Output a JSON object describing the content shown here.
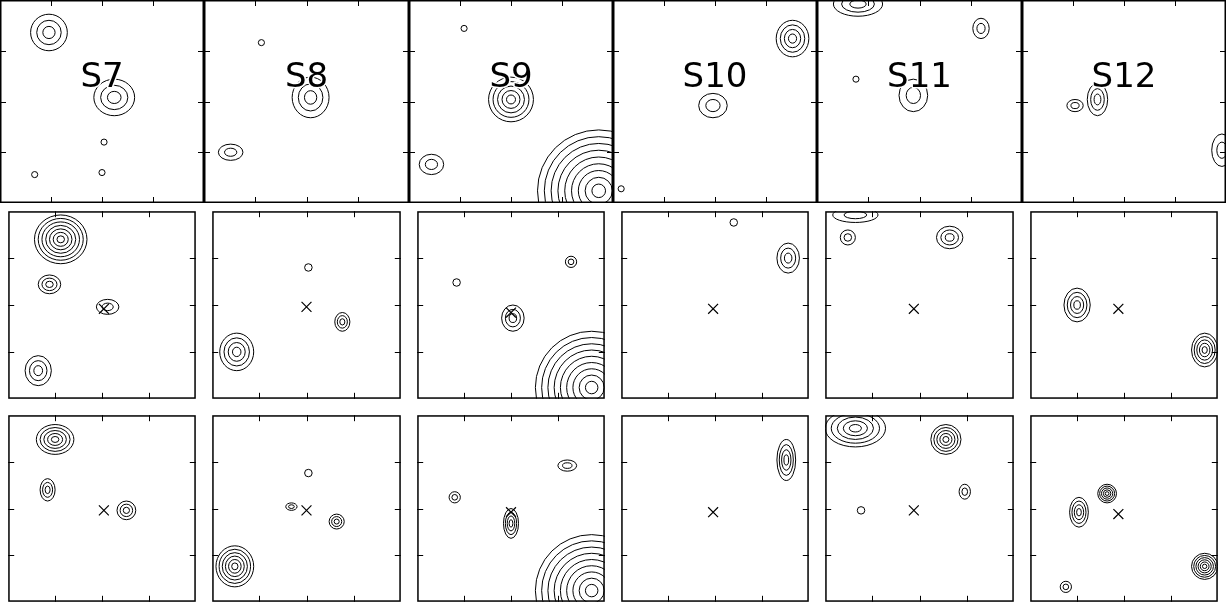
{
  "chart_data": [
    {
      "type": "contour",
      "title": "S7",
      "xlim": [
        0,
        100
      ],
      "ylim": [
        0,
        100
      ],
      "xticks": [
        25,
        50,
        75
      ],
      "yticks": [
        25,
        50,
        75
      ],
      "tick_labels": false,
      "sources": [
        {
          "x": 24,
          "y": 84,
          "rx": 9,
          "ry": 9,
          "levels": 3
        },
        {
          "x": 56,
          "y": 52,
          "rx": 10,
          "ry": 9,
          "levels": 3
        },
        {
          "x": 51,
          "y": 30,
          "rx": 1.5,
          "ry": 1.5,
          "levels": 1
        },
        {
          "x": 17,
          "y": 14,
          "rx": 1.5,
          "ry": 1.5,
          "levels": 1
        },
        {
          "x": 50,
          "y": 15,
          "rx": 1.5,
          "ry": 1.5,
          "levels": 1
        }
      ]
    },
    {
      "type": "contour",
      "title": "S8",
      "xlim": [
        0,
        100
      ],
      "ylim": [
        0,
        100
      ],
      "xticks": [
        25,
        50,
        75
      ],
      "yticks": [
        25,
        50,
        75
      ],
      "tick_labels": false,
      "sources": [
        {
          "x": 52,
          "y": 52,
          "rx": 9,
          "ry": 10,
          "levels": 3
        },
        {
          "x": 13,
          "y": 25,
          "rx": 6,
          "ry": 4,
          "levels": 2
        },
        {
          "x": 28,
          "y": 79,
          "rx": 1.5,
          "ry": 1.5,
          "levels": 1
        }
      ]
    },
    {
      "type": "contour",
      "title": "S9",
      "xlim": [
        0,
        100
      ],
      "ylim": [
        0,
        100
      ],
      "xticks": [
        25,
        50,
        75
      ],
      "yticks": [
        25,
        50,
        75
      ],
      "tick_labels": false,
      "sources": [
        {
          "x": 50,
          "y": 51,
          "rx": 11,
          "ry": 11,
          "levels": 5
        },
        {
          "x": 11,
          "y": 19,
          "rx": 6,
          "ry": 5,
          "levels": 2
        },
        {
          "x": 93,
          "y": 6,
          "rx": 30,
          "ry": 30,
          "levels": 9
        },
        {
          "x": 27,
          "y": 86,
          "rx": 1.5,
          "ry": 1.5,
          "levels": 1
        }
      ]
    },
    {
      "type": "contour",
      "title": "S10",
      "xlim": [
        0,
        100
      ],
      "ylim": [
        0,
        100
      ],
      "xticks": [
        25,
        50,
        75
      ],
      "yticks": [
        25,
        50,
        75
      ],
      "tick_labels": false,
      "sources": [
        {
          "x": 49,
          "y": 48,
          "rx": 7,
          "ry": 6,
          "levels": 2
        },
        {
          "x": 88,
          "y": 81,
          "rx": 8,
          "ry": 9,
          "levels": 4
        },
        {
          "x": 4,
          "y": 7,
          "rx": 1.5,
          "ry": 1.5,
          "levels": 1
        }
      ]
    },
    {
      "type": "contour",
      "title": "S11",
      "xlim": [
        0,
        100
      ],
      "ylim": [
        0,
        100
      ],
      "xticks": [
        25,
        50,
        75
      ],
      "yticks": [
        25,
        50,
        75
      ],
      "tick_labels": false,
      "sources": [
        {
          "x": 47,
          "y": 53,
          "rx": 7,
          "ry": 8,
          "levels": 2
        },
        {
          "x": 20,
          "y": 98,
          "rx": 12,
          "ry": 6,
          "levels": 3
        },
        {
          "x": 80,
          "y": 86,
          "rx": 4,
          "ry": 5,
          "levels": 2
        },
        {
          "x": 19,
          "y": 61,
          "rx": 1.5,
          "ry": 1.5,
          "levels": 1
        }
      ]
    },
    {
      "type": "contour",
      "title": "S12",
      "xlim": [
        0,
        100
      ],
      "ylim": [
        0,
        100
      ],
      "xticks": [
        25,
        50,
        75
      ],
      "yticks": [
        25,
        50,
        75
      ],
      "tick_labels": false,
      "sources": [
        {
          "x": 37,
          "y": 51,
          "rx": 5,
          "ry": 8,
          "levels": 3
        },
        {
          "x": 26,
          "y": 48,
          "rx": 4,
          "ry": 3,
          "levels": 2
        },
        {
          "x": 98,
          "y": 26,
          "rx": 5,
          "ry": 8,
          "levels": 2
        }
      ]
    },
    {
      "type": "contour",
      "xlim": [
        0,
        100
      ],
      "ylim": [
        0,
        100
      ],
      "xticks": [
        25,
        50,
        75
      ],
      "yticks": [
        25,
        50,
        75
      ],
      "tick_labels": false,
      "marker": "x",
      "cross": {
        "x": 51,
        "y": 48
      },
      "sources": [
        {
          "x": 28,
          "y": 85,
          "rx": 14,
          "ry": 13,
          "levels": 7
        },
        {
          "x": 22,
          "y": 61,
          "rx": 6,
          "ry": 5,
          "levels": 3
        },
        {
          "x": 53,
          "y": 49,
          "rx": 6,
          "ry": 4,
          "levels": 2
        },
        {
          "x": 16,
          "y": 15,
          "rx": 7,
          "ry": 8,
          "levels": 3
        }
      ]
    },
    {
      "type": "contour",
      "xlim": [
        0,
        100
      ],
      "ylim": [
        0,
        100
      ],
      "xticks": [
        25,
        50,
        75
      ],
      "yticks": [
        25,
        50,
        75
      ],
      "tick_labels": false,
      "marker": "x",
      "cross": {
        "x": 50,
        "y": 49
      },
      "sources": [
        {
          "x": 69,
          "y": 41,
          "rx": 4,
          "ry": 5,
          "levels": 3
        },
        {
          "x": 13,
          "y": 25,
          "rx": 9,
          "ry": 10,
          "levels": 4
        },
        {
          "x": 51,
          "y": 70,
          "rx": 2,
          "ry": 2,
          "levels": 1
        }
      ]
    },
    {
      "type": "contour",
      "xlim": [
        0,
        100
      ],
      "ylim": [
        0,
        100
      ],
      "xticks": [
        25,
        50,
        75
      ],
      "yticks": [
        25,
        50,
        75
      ],
      "tick_labels": false,
      "marker": "x",
      "cross": {
        "x": 50,
        "y": 46
      },
      "sources": [
        {
          "x": 51,
          "y": 43,
          "rx": 6,
          "ry": 7,
          "levels": 3
        },
        {
          "x": 93,
          "y": 6,
          "rx": 30,
          "ry": 30,
          "levels": 9
        },
        {
          "x": 82,
          "y": 73,
          "rx": 3,
          "ry": 3,
          "levels": 2
        },
        {
          "x": 21,
          "y": 62,
          "rx": 2,
          "ry": 2,
          "levels": 1
        }
      ]
    },
    {
      "type": "contour",
      "xlim": [
        0,
        100
      ],
      "ylim": [
        0,
        100
      ],
      "xticks": [
        25,
        50,
        75
      ],
      "yticks": [
        25,
        50,
        75
      ],
      "tick_labels": false,
      "marker": "x",
      "cross": {
        "x": 49,
        "y": 48
      },
      "sources": [
        {
          "x": 89,
          "y": 75,
          "rx": 6,
          "ry": 8,
          "levels": 3
        },
        {
          "x": 60,
          "y": 94,
          "rx": 2,
          "ry": 2,
          "levels": 1
        }
      ]
    },
    {
      "type": "contour",
      "xlim": [
        0,
        100
      ],
      "ylim": [
        0,
        100
      ],
      "xticks": [
        25,
        50,
        75
      ],
      "yticks": [
        25,
        50,
        75
      ],
      "tick_labels": false,
      "marker": "x",
      "cross": {
        "x": 47,
        "y": 48
      },
      "sources": [
        {
          "x": 12,
          "y": 86,
          "rx": 4,
          "ry": 4,
          "levels": 2
        },
        {
          "x": 66,
          "y": 86,
          "rx": 7,
          "ry": 6,
          "levels": 3
        },
        {
          "x": 16,
          "y": 98,
          "rx": 12,
          "ry": 4,
          "levels": 2
        }
      ]
    },
    {
      "type": "contour",
      "xlim": [
        0,
        100
      ],
      "ylim": [
        0,
        100
      ],
      "xticks": [
        25,
        50,
        75
      ],
      "yticks": [
        25,
        50,
        75
      ],
      "tick_labels": false,
      "marker": "x",
      "cross": {
        "x": 47,
        "y": 48
      },
      "sources": [
        {
          "x": 25,
          "y": 50,
          "rx": 7,
          "ry": 9,
          "levels": 4
        },
        {
          "x": 93,
          "y": 26,
          "rx": 7,
          "ry": 9,
          "levels": 5
        }
      ]
    },
    {
      "type": "contour",
      "xlim": [
        0,
        100
      ],
      "ylim": [
        0,
        100
      ],
      "xticks": [
        25,
        50,
        75
      ],
      "yticks": [
        25,
        50,
        75
      ],
      "tick_labels": false,
      "marker": "x",
      "cross": {
        "x": 51,
        "y": 49
      },
      "sources": [
        {
          "x": 25,
          "y": 87,
          "rx": 10,
          "ry": 8,
          "levels": 5
        },
        {
          "x": 21,
          "y": 60,
          "rx": 4,
          "ry": 6,
          "levels": 3
        },
        {
          "x": 63,
          "y": 49,
          "rx": 5,
          "ry": 5,
          "levels": 3
        }
      ]
    },
    {
      "type": "contour",
      "xlim": [
        0,
        100
      ],
      "ylim": [
        0,
        100
      ],
      "xticks": [
        25,
        50,
        75
      ],
      "yticks": [
        25,
        50,
        75
      ],
      "tick_labels": false,
      "marker": "x",
      "cross": {
        "x": 50,
        "y": 49
      },
      "sources": [
        {
          "x": 66,
          "y": 43,
          "rx": 4,
          "ry": 4,
          "levels": 3
        },
        {
          "x": 42,
          "y": 51,
          "rx": 3,
          "ry": 2,
          "levels": 2
        },
        {
          "x": 12,
          "y": 19,
          "rx": 10,
          "ry": 11,
          "levels": 6
        },
        {
          "x": 51,
          "y": 69,
          "rx": 2,
          "ry": 2,
          "levels": 1
        }
      ]
    },
    {
      "type": "contour",
      "xlim": [
        0,
        100
      ],
      "ylim": [
        0,
        100
      ],
      "xticks": [
        25,
        50,
        75
      ],
      "yticks": [
        25,
        50,
        75
      ],
      "tick_labels": false,
      "marker": "x",
      "cross": {
        "x": 50,
        "y": 48
      },
      "sources": [
        {
          "x": 50,
          "y": 42,
          "rx": 4,
          "ry": 8,
          "levels": 4
        },
        {
          "x": 93,
          "y": 6,
          "rx": 30,
          "ry": 30,
          "levels": 9
        },
        {
          "x": 80,
          "y": 73,
          "rx": 5,
          "ry": 3,
          "levels": 2
        },
        {
          "x": 20,
          "y": 56,
          "rx": 3,
          "ry": 3,
          "levels": 2
        }
      ]
    },
    {
      "type": "contour",
      "xlim": [
        0,
        100
      ],
      "ylim": [
        0,
        100
      ],
      "xticks": [
        25,
        50,
        75
      ],
      "yticks": [
        25,
        50,
        75
      ],
      "tick_labels": false,
      "marker": "x",
      "cross": {
        "x": 49,
        "y": 48
      },
      "sources": [
        {
          "x": 88,
          "y": 76,
          "rx": 5,
          "ry": 11,
          "levels": 4
        }
      ]
    },
    {
      "type": "contour",
      "xlim": [
        0,
        100
      ],
      "ylim": [
        0,
        100
      ],
      "xticks": [
        25,
        50,
        75
      ],
      "yticks": [
        25,
        50,
        75
      ],
      "tick_labels": false,
      "marker": "x",
      "cross": {
        "x": 47,
        "y": 49
      },
      "sources": [
        {
          "x": 64,
          "y": 87,
          "rx": 8,
          "ry": 8,
          "levels": 5
        },
        {
          "x": 16,
          "y": 93,
          "rx": 16,
          "ry": 10,
          "levels": 5
        },
        {
          "x": 74,
          "y": 59,
          "rx": 3,
          "ry": 4,
          "levels": 2
        },
        {
          "x": 19,
          "y": 49,
          "rx": 2,
          "ry": 2,
          "levels": 1
        }
      ]
    },
    {
      "type": "contour",
      "xlim": [
        0,
        100
      ],
      "ylim": [
        0,
        100
      ],
      "xticks": [
        25,
        50,
        75
      ],
      "yticks": [
        25,
        50,
        75
      ],
      "tick_labels": false,
      "marker": "x",
      "cross": {
        "x": 47,
        "y": 47
      },
      "sources": [
        {
          "x": 41,
          "y": 58,
          "rx": 5,
          "ry": 5,
          "levels": 5
        },
        {
          "x": 26,
          "y": 48,
          "rx": 5,
          "ry": 8,
          "levels": 4
        },
        {
          "x": 93,
          "y": 19,
          "rx": 7,
          "ry": 7,
          "levels": 6
        },
        {
          "x": 19,
          "y": 8,
          "rx": 3,
          "ry": 3,
          "levels": 2
        }
      ]
    }
  ]
}
